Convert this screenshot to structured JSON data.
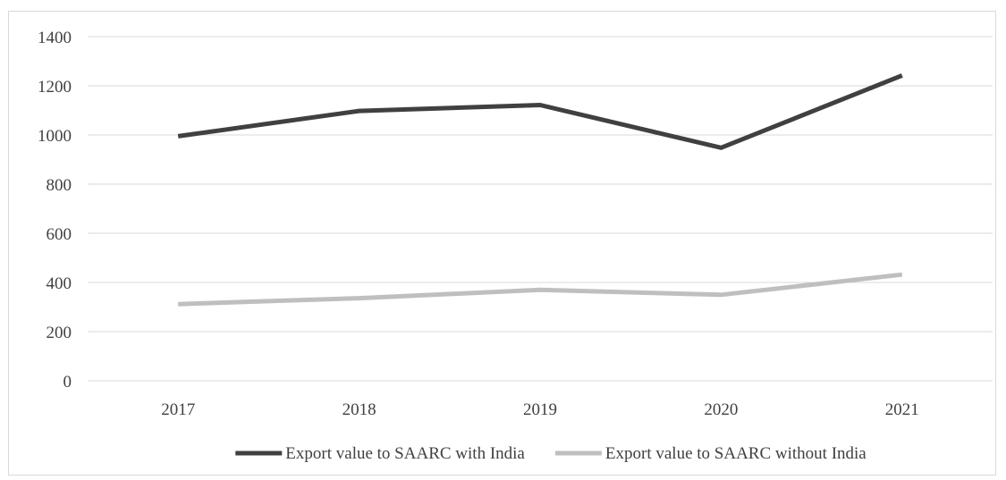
{
  "chart_data": {
    "type": "line",
    "title": "",
    "xlabel": "",
    "ylabel": "",
    "categories": [
      "2017",
      "2018",
      "2019",
      "2020",
      "2021"
    ],
    "ylim": [
      0,
      1400
    ],
    "yticks": [
      0,
      200,
      400,
      600,
      800,
      1000,
      1200,
      1400
    ],
    "grid": true,
    "legend_position": "bottom",
    "series": [
      {
        "name": "Export value to SAARC with India",
        "values": [
          995,
          1098,
          1122,
          948,
          1242
        ],
        "color": "#404040"
      },
      {
        "name": "Export value to SAARC without India",
        "values": [
          312,
          336,
          370,
          350,
          432
        ],
        "color": "#bfbfbf"
      }
    ]
  }
}
